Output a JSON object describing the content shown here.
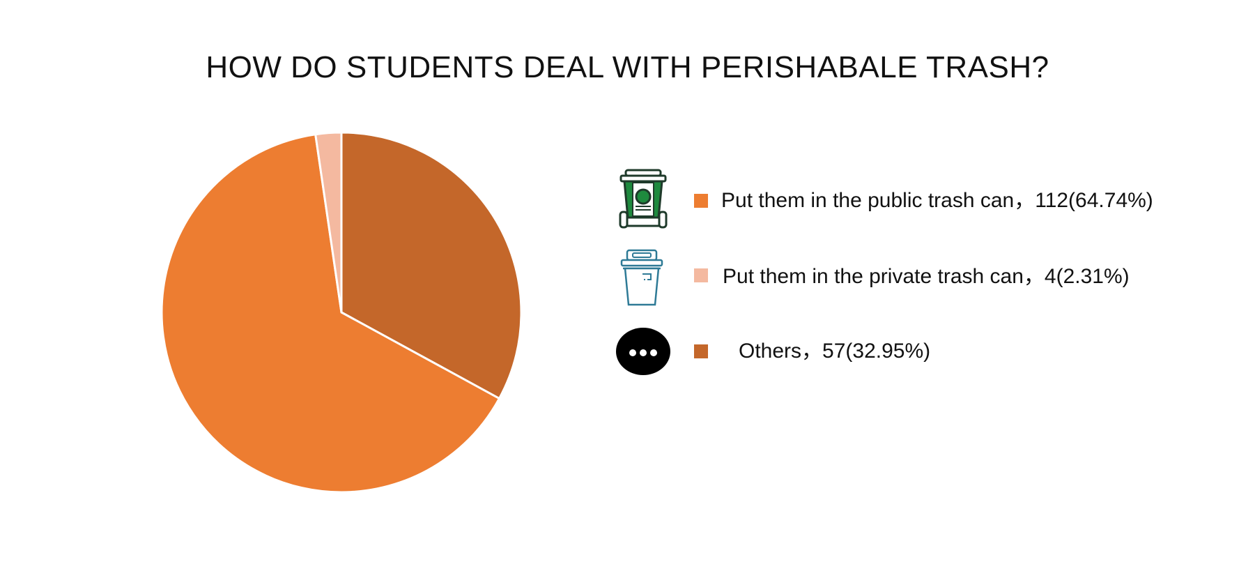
{
  "chart_data": {
    "type": "pie",
    "title": "HOW DO STUDENTS DEAL WITH PERISHABALE TRASH?",
    "slices": [
      {
        "label": "Others",
        "value": 57,
        "percent": 32.95,
        "color": "#C4672A",
        "legend_text": "Others，57(32.95%)",
        "icon": "speech-bubble-ellipsis-icon"
      },
      {
        "label": "Put them in the public trash can",
        "value": 112,
        "percent": 64.74,
        "color": "#ED7D31",
        "legend_text": "Put them in the public trash can，112(64.74%)",
        "icon": "wheeled-bin-icon"
      },
      {
        "label": "Put them in the private trash can",
        "value": 4,
        "percent": 2.31,
        "color": "#F4B9A0",
        "legend_text": "Put them in the private trash can，4(2.31%)",
        "icon": "lidded-bin-icon"
      }
    ],
    "legend_order": [
      1,
      2,
      0
    ],
    "legend_placement": "right"
  }
}
